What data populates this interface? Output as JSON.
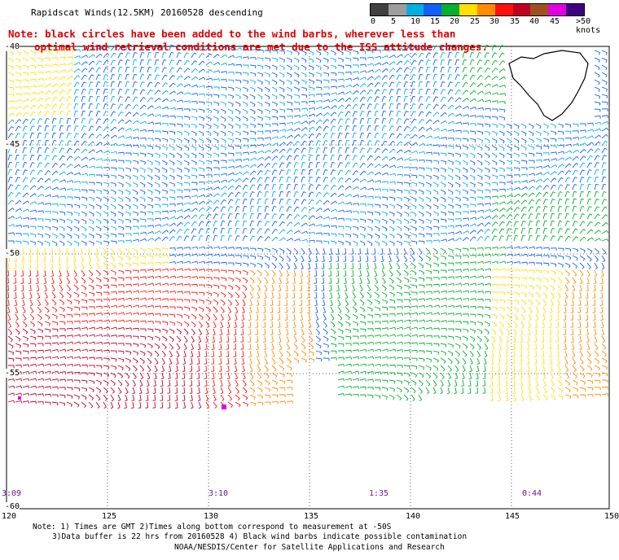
{
  "header": {
    "title": "Rapidscat Winds(12.5KM) 20160528 descending",
    "note_line1": "Note: black circles have been added to the wind barbs, wherever less than",
    "note_line2": "optimal wind retrieval conditions are met due to the ISS attitude changes."
  },
  "colorbar": {
    "labels": [
      "0",
      "5",
      "10",
      "15",
      "20",
      "25",
      "30",
      "35",
      "40",
      "45",
      ">50 knots"
    ],
    "colors": [
      "#404040",
      "#9e9e9e",
      "#00b0e0",
      "#1060ff",
      "#00b030",
      "#ffe000",
      "#ff8c00",
      "#ff1010",
      "#c00020",
      "#a05020",
      "#e000e0",
      "#400080"
    ]
  },
  "axes": {
    "lat_labels": [
      "-40",
      "-45",
      "-50",
      "-55",
      "-60"
    ],
    "lon_labels": [
      "120",
      "125",
      "130",
      "135",
      "140",
      "145",
      "150"
    ]
  },
  "times": [
    "3:09",
    "3:10",
    "1:35",
    "0:44"
  ],
  "footer": {
    "line1": "Note: 1) Times are GMT 2)Times along bottom correspond to measurement at -50S",
    "line2": "3)Data buffer is 22 hrs from 20160528 4) Black wind barbs indicate possible contamination",
    "line3": "NOAA/NESDIS/Center for Satellite Applications and Research"
  }
}
